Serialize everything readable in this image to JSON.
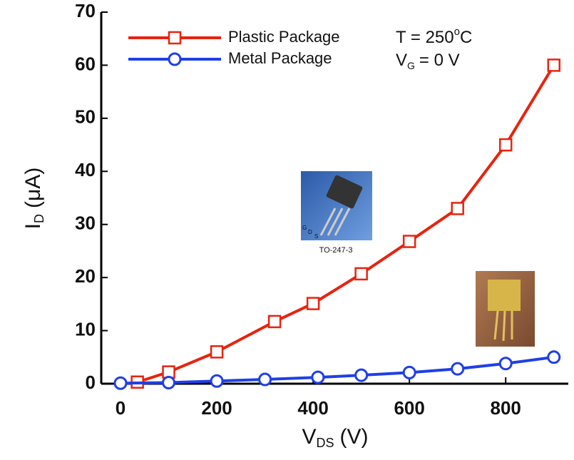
{
  "chart_data": {
    "type": "line",
    "x_label": {
      "main": "V",
      "sub": "DS",
      "unit": "(V)"
    },
    "y_label": {
      "main": "I",
      "sub": "D",
      "unit": "(μA)"
    },
    "xlim": [
      -40,
      930
    ],
    "xticks": [
      0,
      200,
      400,
      600,
      800
    ],
    "ylim": [
      0,
      70
    ],
    "yticks": [
      0,
      10,
      20,
      30,
      40,
      50,
      60,
      70
    ],
    "legend": "upper left",
    "series": [
      {
        "name": "Plastic Package",
        "color": "#e8230f",
        "marker": "square",
        "x": [
          35,
          100,
          200,
          320,
          400,
          500,
          600,
          700,
          800,
          900
        ],
        "values": [
          0.3,
          2.2,
          6,
          11.7,
          15.1,
          20.7,
          26.8,
          33,
          45,
          60
        ]
      },
      {
        "name": "Metal Package",
        "color": "#1f3fe6",
        "marker": "circle",
        "x": [
          0,
          100,
          200,
          300,
          410,
          500,
          600,
          700,
          800,
          900
        ],
        "values": [
          0.1,
          0.2,
          0.5,
          0.8,
          1.2,
          1.6,
          2.1,
          2.8,
          3.8,
          5.0
        ]
      }
    ],
    "annotations": {
      "temperature": {
        "main": "T = 250",
        "sup": "o",
        "unit": "C"
      },
      "gate": {
        "main": "V",
        "sub": "G",
        "unit": "= 0 V"
      },
      "package_caption": "TO-247-3",
      "pins": [
        "G",
        "D",
        "S"
      ]
    }
  }
}
